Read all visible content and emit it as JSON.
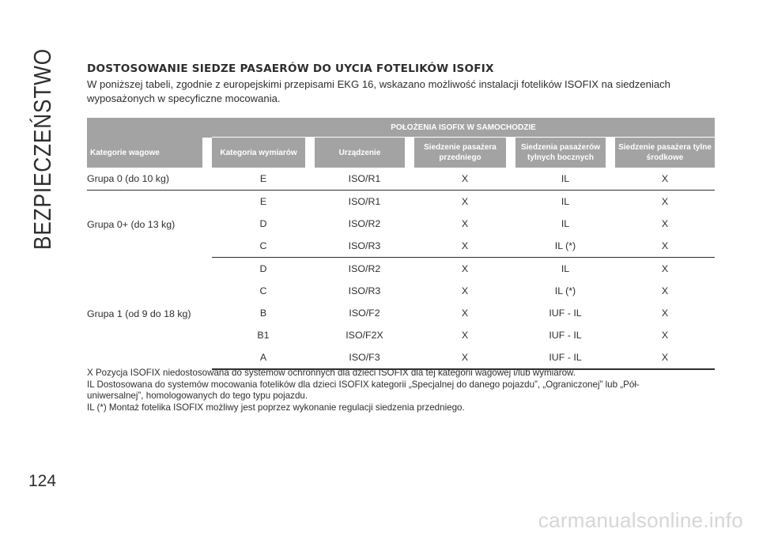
{
  "side_title": "BEZPIECZEŃSTWO",
  "page_number": "124",
  "heading": "DOSTOSOWANIE SIEDZE PASAERÓW DO UYCIA FOTELIKÓW ISOFIX",
  "intro": "W poniższej tabeli, zgodnie z europejskimi przepisami EKG 16, wskazano możliwość instalacji fotelików ISOFIX na siedzeniach wyposażonych w specyficzne mocowania.",
  "table": {
    "group_header": "POŁOŻENIA ISOFIX W SAMOCHODZIE",
    "columns": [
      "Kategorie wagowe",
      "Kategoria wymiarów",
      "Urządzenie",
      "Siedzenie pasażera przedniego",
      "Siedzenia pasażerów tylnych bocznych",
      "Siedzenie pasażera tylne środkowe"
    ],
    "groups": [
      {
        "weight": "Grupa 0 (do 10 kg)",
        "rows": [
          {
            "size": "E",
            "device": "ISO/R1",
            "front": "X",
            "rear_side": "IL",
            "rear_center": "X"
          }
        ]
      },
      {
        "weight": "Grupa 0+ (do 13 kg)",
        "rows": [
          {
            "size": "E",
            "device": "ISO/R1",
            "front": "X",
            "rear_side": "IL",
            "rear_center": "X"
          },
          {
            "size": "D",
            "device": "ISO/R2",
            "front": "X",
            "rear_side": "IL",
            "rear_center": "X"
          },
          {
            "size": "C",
            "device": "ISO/R3",
            "front": "X",
            "rear_side": "IL (*)",
            "rear_center": "X"
          }
        ]
      },
      {
        "weight": "Grupa 1 (od 9 do 18 kg)",
        "rows": [
          {
            "size": "D",
            "device": "ISO/R2",
            "front": "X",
            "rear_side": "IL",
            "rear_center": "X"
          },
          {
            "size": "C",
            "device": "ISO/R3",
            "front": "X",
            "rear_side": "IL (*)",
            "rear_center": "X"
          },
          {
            "size": "B",
            "device": "ISO/F2",
            "front": "X",
            "rear_side": "IUF - IL",
            "rear_center": "X"
          },
          {
            "size": "B1",
            "device": "ISO/F2X",
            "front": "X",
            "rear_side": "IUF - IL",
            "rear_center": "X"
          },
          {
            "size": "A",
            "device": "ISO/F3",
            "front": "X",
            "rear_side": "IUF - IL",
            "rear_center": "X"
          }
        ]
      }
    ]
  },
  "notes": [
    "X Pozycja ISOFIX niedostosowana do systemów ochronnych dla dzieci ISOFIX dla tej kategorii wagowej i/lub wymiarów.",
    "IL Dostosowana do systemów mocowania fotelików dla dzieci ISOFIX kategorii „Specjalnej do danego pojazdu”, „Ograniczonej” lub „Pół-uniwersalnej”, homologowanych do tego typu pojazdu.",
    "IL (*) Montaż fotelika ISOFIX możliwy jest poprzez wykonanie regulacji siedzenia przedniego."
  ],
  "watermark": "carmanualsonline.info"
}
